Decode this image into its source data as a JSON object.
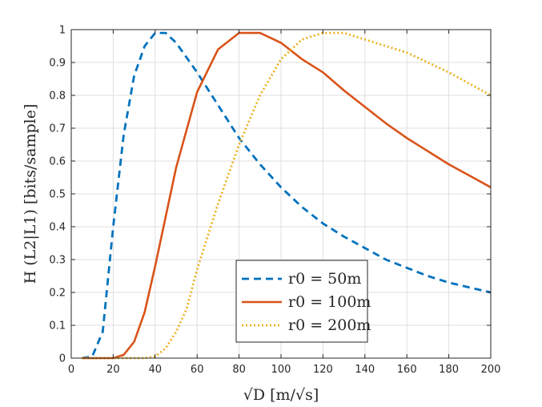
{
  "chart_data": {
    "type": "line",
    "xlabel": "√D [m/√s]",
    "ylabel": "H (L2|L1) [bits/sample]",
    "xlim": [
      0,
      200
    ],
    "ylim": [
      0,
      1
    ],
    "xticks": [
      0,
      20,
      40,
      60,
      80,
      100,
      120,
      140,
      160,
      180,
      200
    ],
    "yticks": [
      0,
      0.1,
      0.2,
      0.3,
      0.4,
      0.5,
      0.6,
      0.7,
      0.8,
      0.9,
      1
    ],
    "xtick_labels": [
      "0",
      "20",
      "40",
      "60",
      "80",
      "100",
      "120",
      "140",
      "160",
      "180",
      "200"
    ],
    "ytick_labels": [
      "0",
      "0.1",
      "0.2",
      "0.3",
      "0.4",
      "0.5",
      "0.6",
      "0.7",
      "0.8",
      "0.9",
      "1"
    ],
    "grid": true,
    "legend_position": "bottom-center",
    "series": [
      {
        "name": "r0 = 50m",
        "color": "#0072BD",
        "style": "dashed",
        "x": [
          5,
          10,
          15,
          20,
          25,
          30,
          35,
          40,
          45,
          50,
          60,
          70,
          80,
          90,
          100,
          110,
          120,
          130,
          140,
          150,
          160,
          170,
          180,
          190,
          200
        ],
        "y": [
          0,
          0.005,
          0.08,
          0.4,
          0.68,
          0.86,
          0.95,
          0.99,
          0.99,
          0.96,
          0.87,
          0.77,
          0.67,
          0.59,
          0.52,
          0.46,
          0.41,
          0.37,
          0.335,
          0.3,
          0.275,
          0.25,
          0.23,
          0.215,
          0.2
        ]
      },
      {
        "name": "r0 = 100m",
        "color": "#D95319",
        "style": "solid",
        "x": [
          5,
          10,
          15,
          20,
          25,
          30,
          35,
          40,
          45,
          50,
          60,
          70,
          80,
          90,
          100,
          110,
          120,
          130,
          140,
          150,
          160,
          170,
          180,
          190,
          200
        ],
        "y": [
          0,
          0,
          0,
          0,
          0.01,
          0.05,
          0.14,
          0.28,
          0.43,
          0.58,
          0.81,
          0.94,
          0.99,
          0.99,
          0.96,
          0.91,
          0.87,
          0.815,
          0.765,
          0.715,
          0.67,
          0.63,
          0.59,
          0.555,
          0.52
        ]
      },
      {
        "name": "r0 = 200m",
        "color": "#EDB120",
        "style": "dotted",
        "x": [
          5,
          10,
          15,
          20,
          25,
          30,
          35,
          40,
          45,
          50,
          55,
          60,
          70,
          80,
          90,
          100,
          110,
          120,
          130,
          140,
          150,
          160,
          170,
          180,
          190,
          200
        ],
        "y": [
          0,
          0,
          0,
          0,
          0,
          0,
          0,
          0.005,
          0.03,
          0.08,
          0.15,
          0.27,
          0.47,
          0.65,
          0.8,
          0.91,
          0.97,
          0.99,
          0.99,
          0.97,
          0.95,
          0.93,
          0.9,
          0.87,
          0.835,
          0.8
        ]
      }
    ]
  }
}
